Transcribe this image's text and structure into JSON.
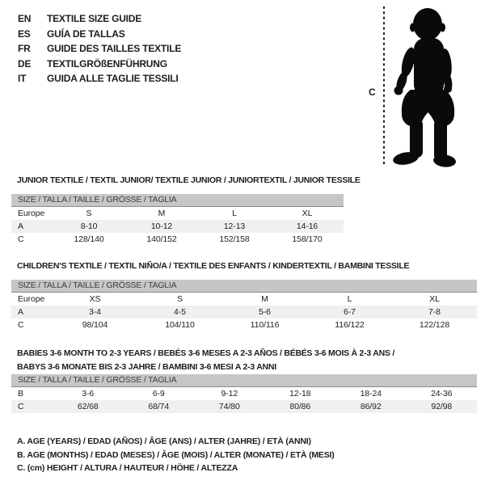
{
  "colors": {
    "text": "#1d1d1b",
    "size_bar_bg": "#c6c6c6",
    "size_bar_text": "#3d3d3b",
    "size_bar_border": "#8c8c8c",
    "zebra_row_bg": "#f0f0f0",
    "silhouette": "#0a0a0a"
  },
  "language_header": {
    "items": [
      {
        "code": "EN",
        "label": "TEXTILE SIZE GUIDE"
      },
      {
        "code": "ES",
        "label": "GUÍA DE TALLAS"
      },
      {
        "code": "FR",
        "label": "GUIDE DES TAILLES TEXTILE"
      },
      {
        "code": "DE",
        "label": "TEXTILGRÖßENFÜHRUNG"
      },
      {
        "code": "IT",
        "label": "GUIDA ALLE TAGLIE TESSILI"
      }
    ]
  },
  "figure": {
    "icon": "baby-silhouette",
    "height_marker_label": "C"
  },
  "sections": [
    {
      "id": "junior",
      "title_lines": [
        "JUNIOR TEXTILE / TEXTIL JUNIOR/ TEXTILE JUNIOR / JUNIORTEXTIL / JUNIOR TESSILE"
      ],
      "size_header": "SIZE / TALLA / TAILLE / GRÖSSE / TAGLIA",
      "rows": [
        {
          "label": "Europe",
          "values": [
            "S",
            "M",
            "L",
            "XL"
          ],
          "shaded": false
        },
        {
          "label": "A",
          "values": [
            "8-10",
            "10-12",
            "12-13",
            "14-16"
          ],
          "shaded": true
        },
        {
          "label": "C",
          "values": [
            "128/140",
            "140/152",
            "152/158",
            "158/170"
          ],
          "shaded": false
        }
      ]
    },
    {
      "id": "children",
      "title_lines": [
        "CHILDREN'S TEXTILE / TEXTIL NIÑO/A / TEXTILE DES ENFANTS / KINDERTEXTIL / BAMBINI TESSILE"
      ],
      "size_header": "SIZE / TALLA / TAILLE / GRÖSSE / TAGLIA",
      "rows": [
        {
          "label": "Europe",
          "values": [
            "XS",
            "S",
            "M",
            "L",
            "XL"
          ],
          "shaded": false
        },
        {
          "label": "A",
          "values": [
            "3-4",
            "4-5",
            "5-6",
            "6-7",
            "7-8"
          ],
          "shaded": true
        },
        {
          "label": "C",
          "values": [
            "98/104",
            "104/110",
            "110/116",
            "116/122",
            "122/128"
          ],
          "shaded": false
        }
      ]
    },
    {
      "id": "babies",
      "title_lines": [
        "BABIES 3-6 MONTH TO 2-3 YEARS / BEBÉS 3-6 MESES A 2-3 AÑOS / BÉBÉS 3-6 MOIS À 2-3 ANS /",
        "BABYS 3-6 MONATE BIS 2-3 JAHRE / BAMBINI 3-6 MESI A 2-3 ANNI"
      ],
      "size_header": "SIZE / TALLA / TAILLE / GRÖSSE / TAGLIA",
      "rows": [
        {
          "label": "B",
          "values": [
            "3-6",
            "6-9",
            "9-12",
            "12-18",
            "18-24",
            "24-36"
          ],
          "shaded": false
        },
        {
          "label": "C",
          "values": [
            "62/68",
            "68/74",
            "74/80",
            "80/86",
            "86/92",
            "92/98"
          ],
          "shaded": true
        }
      ]
    }
  ],
  "footnotes": [
    "A. AGE (YEARS) / EDAD (AÑOS) / ÂGE (ANS) / ALTER (JAHRE) / ETÀ (ANNI)",
    "B. AGE (MONTHS) / EDAD (MESES) / ÂGE (MOIS) / ALTER (MONATE) / ETÀ (MESI)",
    "C. (cm) HEIGHT / ALTURA / HAUTEUR / HÖHE / ALTEZZA"
  ]
}
